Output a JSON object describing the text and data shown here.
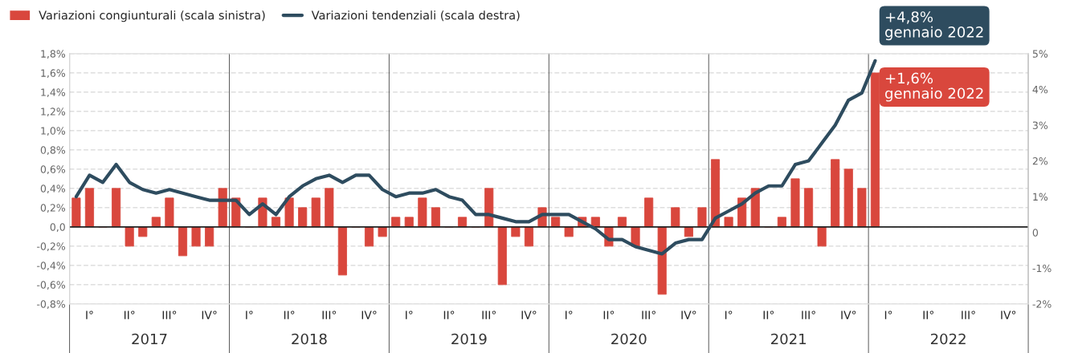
{
  "chart_data": {
    "type": "bar",
    "categories": [
      null,
      "I°",
      null,
      null,
      "II°",
      null,
      null,
      "III°",
      null,
      null,
      "IV°",
      null,
      null,
      "I°",
      null,
      null,
      "II°",
      null,
      null,
      "III°",
      null,
      null,
      "IV°",
      null,
      null,
      "I°",
      null,
      null,
      "II°",
      null,
      null,
      "III°",
      null,
      null,
      "IV°",
      null,
      null,
      "I°",
      null,
      null,
      "II°",
      null,
      null,
      "III°",
      null,
      null,
      "IV°",
      null,
      null,
      "I°",
      null,
      null,
      "II°",
      null,
      null,
      "III°",
      null,
      null,
      "IV°",
      null,
      null,
      "I°",
      null,
      null,
      "II°",
      null,
      null,
      "III°",
      null,
      null,
      "IV°",
      null
    ],
    "series": [
      {
        "name": "Variazioni congiunturali (scala sinistra)",
        "color": "#d9473d",
        "values": [
          0.3,
          0.4,
          0,
          0.4,
          -0.2,
          -0.1,
          0.1,
          0.3,
          -0.3,
          -0.2,
          -0.2,
          0.4,
          0.3,
          0,
          0.3,
          0.1,
          0.3,
          0.2,
          0.3,
          0.4,
          -0.5,
          0,
          -0.2,
          -0.1,
          0.1,
          0.1,
          0.3,
          0.2,
          0,
          0.1,
          0,
          0.4,
          -0.6,
          -0.1,
          -0.2,
          0.2,
          0.1,
          -0.1,
          0.1,
          0.1,
          -0.2,
          0.1,
          -0.2,
          0.3,
          -0.7,
          0.2,
          -0.1,
          0.2,
          0.7,
          0.1,
          0.3,
          0.4,
          0,
          0.1,
          0.5,
          0.4,
          -0.2,
          0.7,
          0.6,
          0.4,
          1.6,
          null,
          null,
          null,
          null,
          null,
          null,
          null,
          null,
          null,
          null,
          null
        ]
      },
      {
        "name": "Variazioni tendenziali (scala destra)",
        "type": "line",
        "axis": "y2",
        "color": "#2e4c5f",
        "values": [
          1.0,
          1.6,
          1.4,
          1.9,
          1.4,
          1.2,
          1.1,
          1.2,
          1.1,
          1.0,
          0.9,
          0.9,
          0.9,
          0.5,
          0.8,
          0.5,
          1.0,
          1.3,
          1.5,
          1.6,
          1.4,
          1.6,
          1.6,
          1.2,
          1.0,
          1.1,
          1.1,
          1.2,
          1.0,
          0.9,
          0.5,
          0.5,
          0.4,
          0.3,
          0.3,
          0.5,
          0.5,
          0.5,
          0.3,
          0.1,
          -0.2,
          -0.2,
          -0.4,
          -0.5,
          -0.6,
          -0.3,
          -0.2,
          -0.2,
          0.4,
          0.6,
          0.8,
          1.1,
          1.3,
          1.3,
          1.9,
          2.0,
          2.5,
          3.0,
          3.7,
          3.9,
          4.8,
          null,
          null,
          null,
          null,
          null,
          null,
          null,
          null,
          null,
          null,
          null
        ]
      }
    ],
    "ylim": [
      -0.8,
      1.8
    ],
    "yticks": [
      {
        "value": 1.8,
        "label": "1,8%"
      },
      {
        "value": 1.6,
        "label": "1,6%"
      },
      {
        "value": 1.4,
        "label": "1,4%"
      },
      {
        "value": 1.2,
        "label": "1,2%"
      },
      {
        "value": 1.0,
        "label": "1,0%"
      },
      {
        "value": 0.8,
        "label": "0,8%"
      },
      {
        "value": 0.6,
        "label": "0,6%"
      },
      {
        "value": 0.4,
        "label": "0,4%"
      },
      {
        "value": 0.2,
        "label": "0,2%"
      },
      {
        "value": 0,
        "label": "0,0"
      },
      {
        "value": -0.2,
        "label": "-0,2%"
      },
      {
        "value": -0.4,
        "label": "-0,4%"
      },
      {
        "value": -0.6,
        "label": "-0,6%"
      },
      {
        "value": -0.8,
        "label": "-0,8%"
      }
    ],
    "y2lim": [
      -2,
      5
    ],
    "y2ticks": [
      {
        "value": 5,
        "label": "5%"
      },
      {
        "value": 4,
        "label": "4%"
      },
      {
        "value": 3,
        "label": "3%"
      },
      {
        "value": 2,
        "label": "2%"
      },
      {
        "value": 1,
        "label": "1%"
      },
      0,
      {
        "value": -1,
        "label": "-1%"
      },
      {
        "value": -2,
        "label": "-2%"
      }
    ],
    "ref_lines": [
      {
        "axis": "y",
        "value": 0,
        "color": "#222222"
      }
    ],
    "annotations": [
      "+4,8%\ngennaio 2022",
      "+1,6%\ngennaio 2022",
      "2017",
      "2018",
      "2019",
      "2020",
      "2021",
      "2022"
    ],
    "grid": "y",
    "legend": "top left"
  }
}
